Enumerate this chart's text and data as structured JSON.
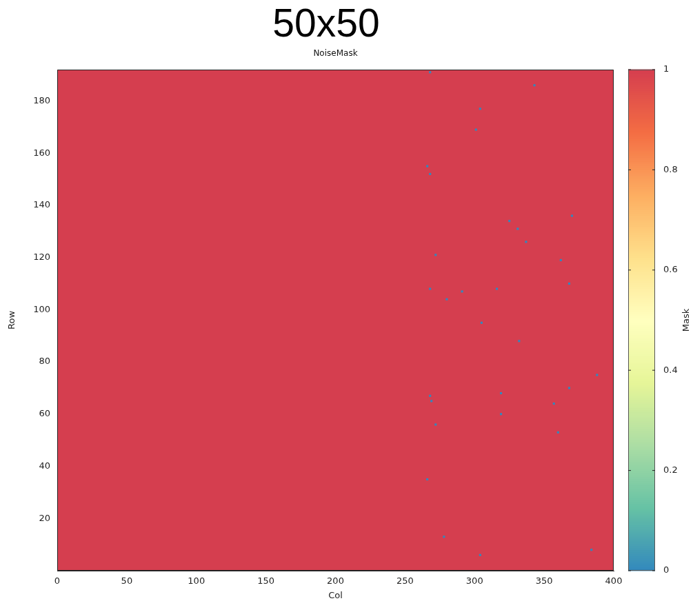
{
  "chart_data": {
    "type": "scatter",
    "title": "50x50",
    "subtitle": "NoiseMask",
    "xlabel": "Col",
    "ylabel": "Row",
    "clabel": "Mask",
    "x": [
      268,
      343,
      304,
      301,
      266,
      268,
      370,
      325,
      331,
      337,
      272,
      362,
      368,
      268,
      316,
      291,
      280,
      305,
      332,
      388,
      368,
      268,
      319,
      269,
      357,
      319,
      272,
      360,
      266,
      278,
      384,
      304
    ],
    "values": [
      191,
      186,
      177,
      169,
      155,
      152,
      136,
      134,
      131,
      126,
      121,
      119,
      110,
      108,
      108,
      107,
      104,
      95,
      88,
      75,
      70,
      67,
      68,
      65,
      64,
      60,
      56,
      53,
      35,
      13,
      8,
      6
    ],
    "cvalues": [
      0,
      0,
      0,
      0,
      0,
      0,
      0,
      0,
      0,
      0,
      0,
      0,
      0,
      0,
      0,
      0,
      0,
      0,
      0,
      0,
      0,
      0,
      0,
      0,
      0,
      0,
      0,
      0,
      0,
      0,
      0,
      0
    ],
    "xlim": [
      0,
      400
    ],
    "ylim": [
      0,
      192
    ],
    "xticks": [
      0,
      50,
      100,
      150,
      200,
      250,
      300,
      350,
      400
    ],
    "yticks": [
      20,
      40,
      60,
      80,
      100,
      120,
      140,
      160,
      180
    ],
    "clim": [
      0,
      1
    ],
    "cticks": [
      0,
      0.2,
      0.4,
      0.6,
      0.8,
      1
    ],
    "bands": [
      {
        "axis": "y",
        "from": 0,
        "to": 192,
        "color": "#d53e4f"
      }
    ],
    "marker": "square"
  }
}
